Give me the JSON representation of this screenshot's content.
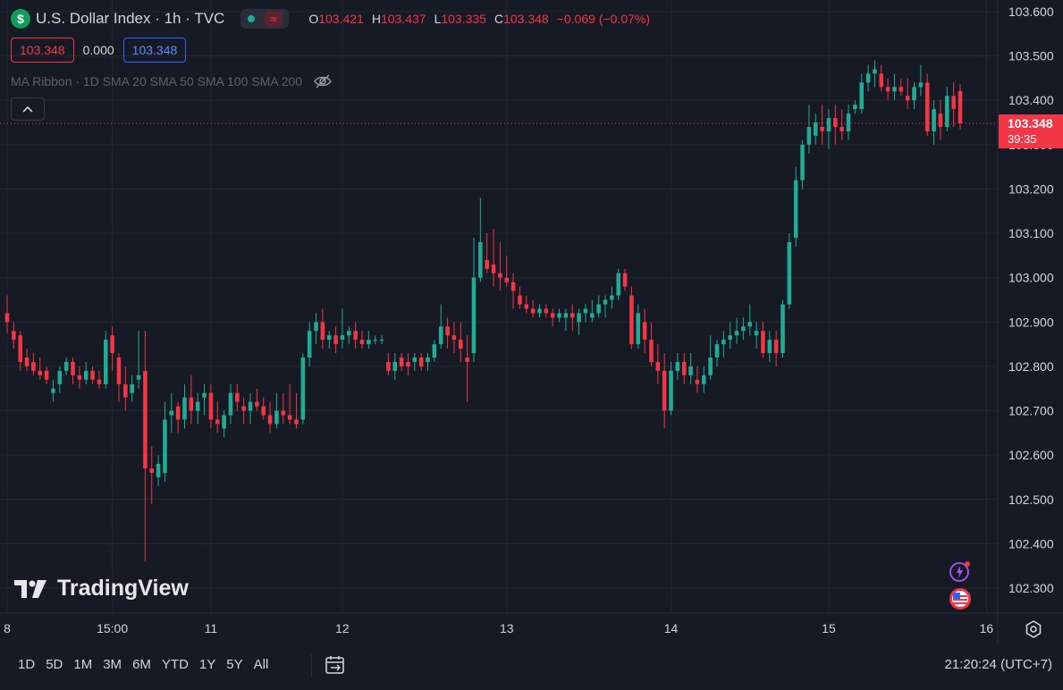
{
  "legend": {
    "symbol_badge": "$",
    "title": "U.S. Dollar Index · 1h · TVC",
    "ohlc": [
      {
        "k": "O",
        "v": "103.421"
      },
      {
        "k": "H",
        "v": "103.437"
      },
      {
        "k": "L",
        "v": "103.335"
      },
      {
        "k": "C",
        "v": "103.348"
      }
    ],
    "change": "−0.069 (−0.07%)",
    "sell_price": "103.348",
    "spread": "0.000",
    "buy_price": "103.348"
  },
  "indicator": {
    "label": "MA Ribbon · 1D SMA 20 SMA 50 SMA 100 SMA 200"
  },
  "watermark": "TradingView",
  "time_ranges": [
    "1D",
    "5D",
    "1M",
    "3M",
    "6M",
    "YTD",
    "1Y",
    "5Y",
    "All"
  ],
  "clock": "21:20:24 (UTC+7)",
  "colors": {
    "up": "#22ab94",
    "down": "#f23645",
    "background": "#161a25",
    "grid": "#232632"
  },
  "icons": {
    "collapse": "chevron-up-icon",
    "visibility": "eye-off-icon",
    "flash": "lightning-icon",
    "flag": "us-flag-icon",
    "settings": "gear-icon",
    "calendar": "calendar-range-icon"
  },
  "chart_data": {
    "type": "candlestick",
    "yticks": [
      "103.600",
      "103.500",
      "103.400",
      "103.300",
      "103.200",
      "103.100",
      "103.000",
      "102.900",
      "102.800",
      "102.700",
      "102.600",
      "102.500",
      "102.400",
      "102.300"
    ],
    "ylim": [
      102.24,
      103.62
    ],
    "xticks": [
      {
        "label": "8",
        "i": 0
      },
      {
        "label": "15:00",
        "i": 16
      },
      {
        "label": "11",
        "i": 31
      },
      {
        "label": "12",
        "i": 51
      },
      {
        "label": "13",
        "i": 76
      },
      {
        "label": "14",
        "i": 101
      },
      {
        "label": "15",
        "i": 125
      },
      {
        "label": "16",
        "i": 149
      }
    ],
    "last_price": "103.348",
    "countdown": "39:35",
    "candles": [
      [
        102.92,
        102.96,
        102.875,
        102.9
      ],
      [
        102.88,
        102.9,
        102.84,
        102.86
      ],
      [
        102.87,
        102.88,
        102.79,
        102.81
      ],
      [
        102.82,
        102.84,
        102.79,
        102.8
      ],
      [
        102.81,
        102.83,
        102.78,
        102.79
      ],
      [
        102.79,
        102.82,
        102.77,
        102.78
      ],
      [
        102.79,
        102.8,
        102.76,
        102.77
      ],
      [
        102.74,
        102.77,
        102.72,
        102.75
      ],
      [
        102.76,
        102.8,
        102.74,
        102.79
      ],
      [
        102.79,
        102.82,
        102.78,
        102.81
      ],
      [
        102.81,
        102.82,
        102.76,
        102.78
      ],
      [
        102.78,
        102.8,
        102.75,
        102.77
      ],
      [
        102.77,
        102.81,
        102.76,
        102.79
      ],
      [
        102.79,
        102.8,
        102.76,
        102.77
      ],
      [
        102.77,
        102.79,
        102.75,
        102.76
      ],
      [
        102.76,
        102.88,
        102.75,
        102.86
      ],
      [
        102.87,
        102.89,
        102.79,
        102.83
      ],
      [
        102.82,
        102.83,
        102.72,
        102.76
      ],
      [
        102.76,
        102.8,
        102.7,
        102.73
      ],
      [
        102.74,
        102.78,
        102.72,
        102.76
      ],
      [
        102.77,
        102.88,
        102.75,
        102.78
      ],
      [
        102.79,
        102.88,
        102.36,
        102.57
      ],
      [
        102.57,
        102.62,
        102.49,
        102.56
      ],
      [
        102.55,
        102.6,
        102.53,
        102.58
      ],
      [
        102.56,
        102.72,
        102.54,
        102.68
      ],
      [
        102.69,
        102.74,
        102.65,
        102.7
      ],
      [
        102.71,
        102.72,
        102.65,
        102.68
      ],
      [
        102.68,
        102.76,
        102.66,
        102.73
      ],
      [
        102.73,
        102.78,
        102.67,
        102.7
      ],
      [
        102.7,
        102.74,
        102.67,
        102.72
      ],
      [
        102.73,
        102.76,
        102.69,
        102.74
      ],
      [
        102.74,
        102.76,
        102.66,
        102.68
      ],
      [
        102.68,
        102.72,
        102.65,
        102.67
      ],
      [
        102.66,
        102.7,
        102.64,
        102.69
      ],
      [
        102.69,
        102.76,
        102.67,
        102.74
      ],
      [
        102.74,
        102.76,
        102.7,
        102.72
      ],
      [
        102.71,
        102.73,
        102.67,
        102.7
      ],
      [
        102.7,
        102.74,
        102.67,
        102.72
      ],
      [
        102.72,
        102.75,
        102.7,
        102.71
      ],
      [
        102.71,
        102.73,
        102.68,
        102.69
      ],
      [
        102.69,
        102.72,
        102.65,
        102.67
      ],
      [
        102.67,
        102.74,
        102.66,
        102.7
      ],
      [
        102.7,
        102.74,
        102.67,
        102.69
      ],
      [
        102.69,
        102.76,
        102.67,
        102.68
      ],
      [
        102.68,
        102.74,
        102.66,
        102.67
      ],
      [
        102.68,
        102.83,
        102.67,
        102.82
      ],
      [
        102.82,
        102.9,
        102.8,
        102.88
      ],
      [
        102.88,
        102.92,
        102.85,
        102.9
      ],
      [
        102.9,
        102.93,
        102.84,
        102.86
      ],
      [
        102.86,
        102.88,
        102.84,
        102.87
      ],
      [
        102.87,
        102.89,
        102.83,
        102.85
      ],
      [
        102.86,
        102.93,
        102.84,
        102.87
      ],
      [
        102.87,
        102.89,
        102.85,
        102.88
      ],
      [
        102.88,
        102.9,
        102.84,
        102.86
      ],
      [
        102.86,
        102.88,
        102.84,
        102.85
      ],
      [
        102.85,
        102.88,
        102.84,
        102.86
      ],
      [
        102.86,
        102.87,
        102.85,
        102.86
      ],
      [
        102.86,
        102.87,
        102.85,
        102.86
      ],
      [
        102.81,
        102.83,
        102.78,
        102.79
      ],
      [
        102.79,
        102.83,
        102.77,
        102.81
      ],
      [
        102.82,
        102.83,
        102.79,
        102.8
      ],
      [
        102.81,
        102.83,
        102.78,
        102.8
      ],
      [
        102.81,
        102.83,
        102.79,
        102.82
      ],
      [
        102.82,
        102.83,
        102.79,
        102.8
      ],
      [
        102.81,
        102.83,
        102.79,
        102.82
      ],
      [
        102.82,
        102.86,
        102.81,
        102.85
      ],
      [
        102.85,
        102.94,
        102.84,
        102.89
      ],
      [
        102.89,
        102.91,
        102.84,
        102.87
      ],
      [
        102.87,
        102.9,
        102.83,
        102.86
      ],
      [
        102.86,
        102.9,
        102.81,
        102.84
      ],
      [
        102.82,
        102.87,
        102.72,
        102.81
      ],
      [
        102.83,
        103.09,
        102.81,
        103.0
      ],
      [
        103.0,
        103.18,
        102.99,
        103.08
      ],
      [
        103.04,
        103.1,
        103.01,
        103.02
      ],
      [
        103.03,
        103.11,
        102.98,
        103.01
      ],
      [
        103.01,
        103.08,
        102.97,
        103.0
      ],
      [
        103.0,
        103.05,
        102.98,
        102.99
      ],
      [
        102.99,
        103.01,
        102.93,
        102.97
      ],
      [
        102.96,
        102.98,
        102.93,
        102.94
      ],
      [
        102.94,
        102.96,
        102.92,
        102.93
      ],
      [
        102.93,
        102.95,
        102.91,
        102.92
      ],
      [
        102.92,
        102.94,
        102.91,
        102.93
      ],
      [
        102.93,
        102.94,
        102.91,
        102.92
      ],
      [
        102.92,
        102.93,
        102.89,
        102.91
      ],
      [
        102.91,
        102.93,
        102.9,
        102.92
      ],
      [
        102.91,
        102.93,
        102.88,
        102.92
      ],
      [
        102.92,
        102.94,
        102.88,
        102.91
      ],
      [
        102.9,
        102.93,
        102.87,
        102.92
      ],
      [
        102.92,
        102.94,
        102.9,
        102.93
      ],
      [
        102.91,
        102.95,
        102.9,
        102.92
      ],
      [
        102.92,
        102.96,
        102.91,
        102.94
      ],
      [
        102.94,
        102.96,
        102.91,
        102.95
      ],
      [
        102.95,
        102.98,
        102.93,
        102.96
      ],
      [
        102.96,
        103.02,
        102.95,
        103.01
      ],
      [
        103.01,
        103.02,
        102.97,
        102.98
      ],
      [
        102.96,
        102.98,
        102.84,
        102.85
      ],
      [
        102.85,
        102.94,
        102.84,
        102.92
      ],
      [
        102.9,
        102.93,
        102.83,
        102.86
      ],
      [
        102.86,
        102.9,
        102.8,
        102.81
      ],
      [
        102.81,
        102.85,
        102.76,
        102.79
      ],
      [
        102.79,
        102.83,
        102.66,
        102.7
      ],
      [
        102.7,
        102.81,
        102.69,
        102.79
      ],
      [
        102.79,
        102.83,
        102.77,
        102.81
      ],
      [
        102.81,
        102.83,
        102.76,
        102.78
      ],
      [
        102.78,
        102.83,
        102.76,
        102.8
      ],
      [
        102.77,
        102.8,
        102.74,
        102.76
      ],
      [
        102.76,
        102.8,
        102.74,
        102.78
      ],
      [
        102.78,
        102.87,
        102.77,
        102.82
      ],
      [
        102.82,
        102.86,
        102.8,
        102.85
      ],
      [
        102.85,
        102.88,
        102.82,
        102.86
      ],
      [
        102.86,
        102.9,
        102.84,
        102.87
      ],
      [
        102.87,
        102.91,
        102.85,
        102.88
      ],
      [
        102.88,
        102.91,
        102.86,
        102.89
      ],
      [
        102.89,
        102.94,
        102.87,
        102.9
      ],
      [
        102.87,
        102.9,
        102.84,
        102.88
      ],
      [
        102.88,
        102.9,
        102.82,
        102.83
      ],
      [
        102.83,
        102.88,
        102.81,
        102.86
      ],
      [
        102.86,
        102.88,
        102.8,
        102.83
      ],
      [
        102.83,
        102.95,
        102.82,
        102.94
      ],
      [
        102.94,
        103.1,
        102.93,
        103.08
      ],
      [
        103.09,
        103.25,
        103.07,
        103.22
      ],
      [
        103.22,
        103.31,
        103.2,
        103.3
      ],
      [
        103.3,
        103.39,
        103.28,
        103.34
      ],
      [
        103.32,
        103.37,
        103.3,
        103.35
      ],
      [
        103.34,
        103.39,
        103.3,
        103.33
      ],
      [
        103.33,
        103.38,
        103.29,
        103.36
      ],
      [
        103.36,
        103.39,
        103.3,
        103.34
      ],
      [
        103.34,
        103.38,
        103.31,
        103.33
      ],
      [
        103.33,
        103.39,
        103.31,
        103.37
      ],
      [
        103.38,
        103.4,
        103.37,
        103.39
      ],
      [
        103.38,
        103.46,
        103.37,
        103.44
      ],
      [
        103.44,
        103.48,
        103.42,
        103.46
      ],
      [
        103.46,
        103.49,
        103.43,
        103.47
      ],
      [
        103.46,
        103.48,
        103.42,
        103.43
      ],
      [
        103.43,
        103.45,
        103.4,
        103.42
      ],
      [
        103.42,
        103.46,
        103.4,
        103.43
      ],
      [
        103.43,
        103.45,
        103.41,
        103.42
      ],
      [
        103.41,
        103.45,
        103.38,
        103.4
      ],
      [
        103.4,
        103.44,
        103.38,
        103.43
      ],
      [
        103.43,
        103.48,
        103.41,
        103.44
      ],
      [
        103.44,
        103.46,
        103.32,
        103.33
      ],
      [
        103.33,
        103.4,
        103.3,
        103.38
      ],
      [
        103.37,
        103.4,
        103.31,
        103.34
      ],
      [
        103.34,
        103.43,
        103.33,
        103.41
      ],
      [
        103.41,
        103.44,
        103.34,
        103.38
      ],
      [
        103.421,
        103.437,
        103.335,
        103.348
      ]
    ]
  }
}
